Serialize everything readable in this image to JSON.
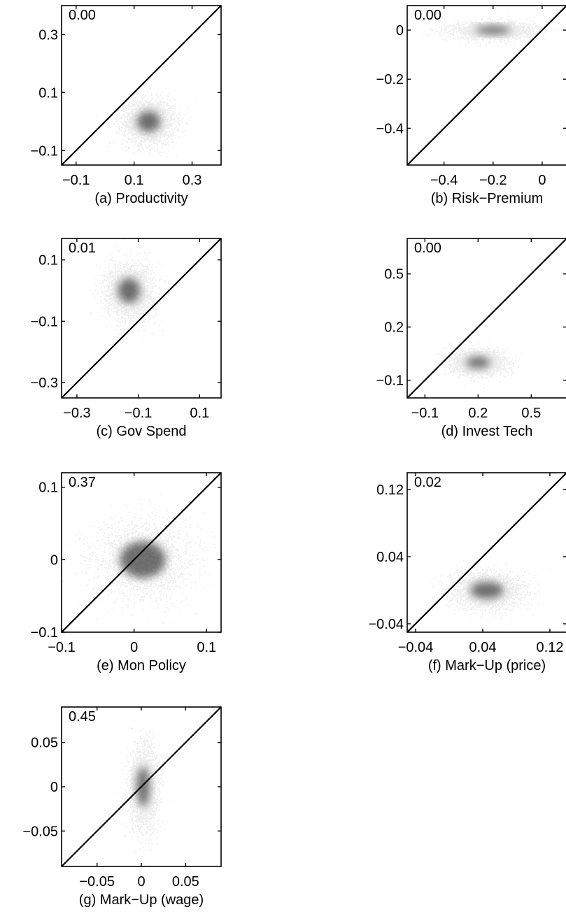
{
  "chart_data": [
    {
      "type": "scatter",
      "caption": "(a) Productivity",
      "corner_value": "0.00",
      "xlim": [
        -0.15,
        0.4
      ],
      "ylim": [
        -0.15,
        0.4
      ],
      "xticks": [
        -0.1,
        0.1,
        0.3
      ],
      "yticks": [
        -0.1,
        0.1,
        0.3
      ],
      "xtick_labels": [
        "−0.1",
        "0.1",
        "0.3"
      ],
      "ytick_labels": [
        "−0.1",
        "0.1",
        "0.3"
      ],
      "density": {
        "center": [
          0.15,
          0.0
        ],
        "spread": [
          0.045,
          0.04
        ]
      },
      "diagonal": true
    },
    {
      "type": "scatter",
      "caption": "(b) Risk−Premium",
      "corner_value": "0.00",
      "xlim": [
        -0.55,
        0.1
      ],
      "ylim": [
        -0.55,
        0.1
      ],
      "xticks": [
        -0.4,
        -0.2,
        0
      ],
      "yticks": [
        -0.4,
        -0.2,
        0
      ],
      "xtick_labels": [
        "−0.4",
        "−0.2",
        "0"
      ],
      "ytick_labels": [
        "−0.4",
        "−0.2",
        "0"
      ],
      "density": {
        "center": [
          -0.2,
          0.0
        ],
        "spread": [
          0.08,
          0.018
        ]
      },
      "diagonal": true
    },
    {
      "type": "scatter",
      "caption": "(c) Gov Spend",
      "corner_value": "0.01",
      "xlim": [
        -0.35,
        0.17
      ],
      "ylim": [
        -0.35,
        0.17
      ],
      "xticks": [
        -0.3,
        -0.1,
        0.1
      ],
      "yticks": [
        -0.3,
        -0.1,
        0.1
      ],
      "xtick_labels": [
        "−0.3",
        "−0.1",
        "0.1"
      ],
      "ytick_labels": [
        "−0.3",
        "−0.1",
        "0.1"
      ],
      "density": {
        "center": [
          -0.13,
          0.0
        ],
        "spread": [
          0.04,
          0.045
        ]
      },
      "diagonal": true
    },
    {
      "type": "scatter",
      "caption": "(d) Invest Tech",
      "corner_value": "0.00",
      "xlim": [
        -0.2,
        0.7
      ],
      "ylim": [
        -0.2,
        0.7
      ],
      "xticks": [
        -0.1,
        0.2,
        0.5
      ],
      "yticks": [
        -0.1,
        0.2,
        0.5
      ],
      "xtick_labels": [
        "−0.1",
        "0.2",
        "0.5"
      ],
      "ytick_labels": [
        "−0.1",
        "0.2",
        "0.5"
      ],
      "density": {
        "center": [
          0.2,
          0.0
        ],
        "spread": [
          0.075,
          0.035
        ]
      },
      "diagonal": true
    },
    {
      "type": "scatter",
      "caption": "(e) Mon Policy",
      "corner_value": "0.37",
      "xlim": [
        -0.1,
        0.12
      ],
      "ylim": [
        -0.1,
        0.12
      ],
      "xticks": [
        -0.1,
        0,
        0.1
      ],
      "yticks": [
        -0.1,
        0,
        0.1
      ],
      "xtick_labels": [
        "−0.1",
        "0",
        "0.1"
      ],
      "ytick_labels": [
        "−0.1",
        "0",
        "0.1"
      ],
      "density": {
        "center": [
          0.012,
          0.0
        ],
        "spread": [
          0.035,
          0.028
        ]
      },
      "diagonal": true
    },
    {
      "type": "scatter",
      "caption": "(f) Mark−Up (price)",
      "corner_value": "0.02",
      "xlim": [
        -0.05,
        0.14
      ],
      "ylim": [
        -0.05,
        0.14
      ],
      "xticks": [
        -0.04,
        0.04,
        0.12
      ],
      "yticks": [
        -0.04,
        0.04,
        0.12
      ],
      "xtick_labels": [
        "−0.04",
        "0.04",
        "0.12"
      ],
      "ytick_labels": [
        "−0.04",
        "0.04",
        "0.12"
      ],
      "density": {
        "center": [
          0.045,
          0.0
        ],
        "spread": [
          0.022,
          0.011
        ]
      },
      "diagonal": true
    },
    {
      "type": "scatter",
      "caption": "(g) Mark−Up (wage)",
      "corner_value": "0.45",
      "xlim": [
        -0.09,
        0.09
      ],
      "ylim": [
        -0.09,
        0.09
      ],
      "xticks": [
        -0.05,
        0,
        0.05
      ],
      "yticks": [
        -0.05,
        0,
        0.05
      ],
      "xtick_labels": [
        "−0.05",
        "0",
        "0.05"
      ],
      "ytick_labels": [
        "−0.05",
        "0.05"
      ],
      "ytick_labels_full": [
        "−0.05",
        "0",
        "0.05"
      ],
      "density": {
        "center": [
          0.002,
          0.0
        ],
        "spread": [
          0.008,
          0.025
        ]
      },
      "diagonal": true
    }
  ]
}
